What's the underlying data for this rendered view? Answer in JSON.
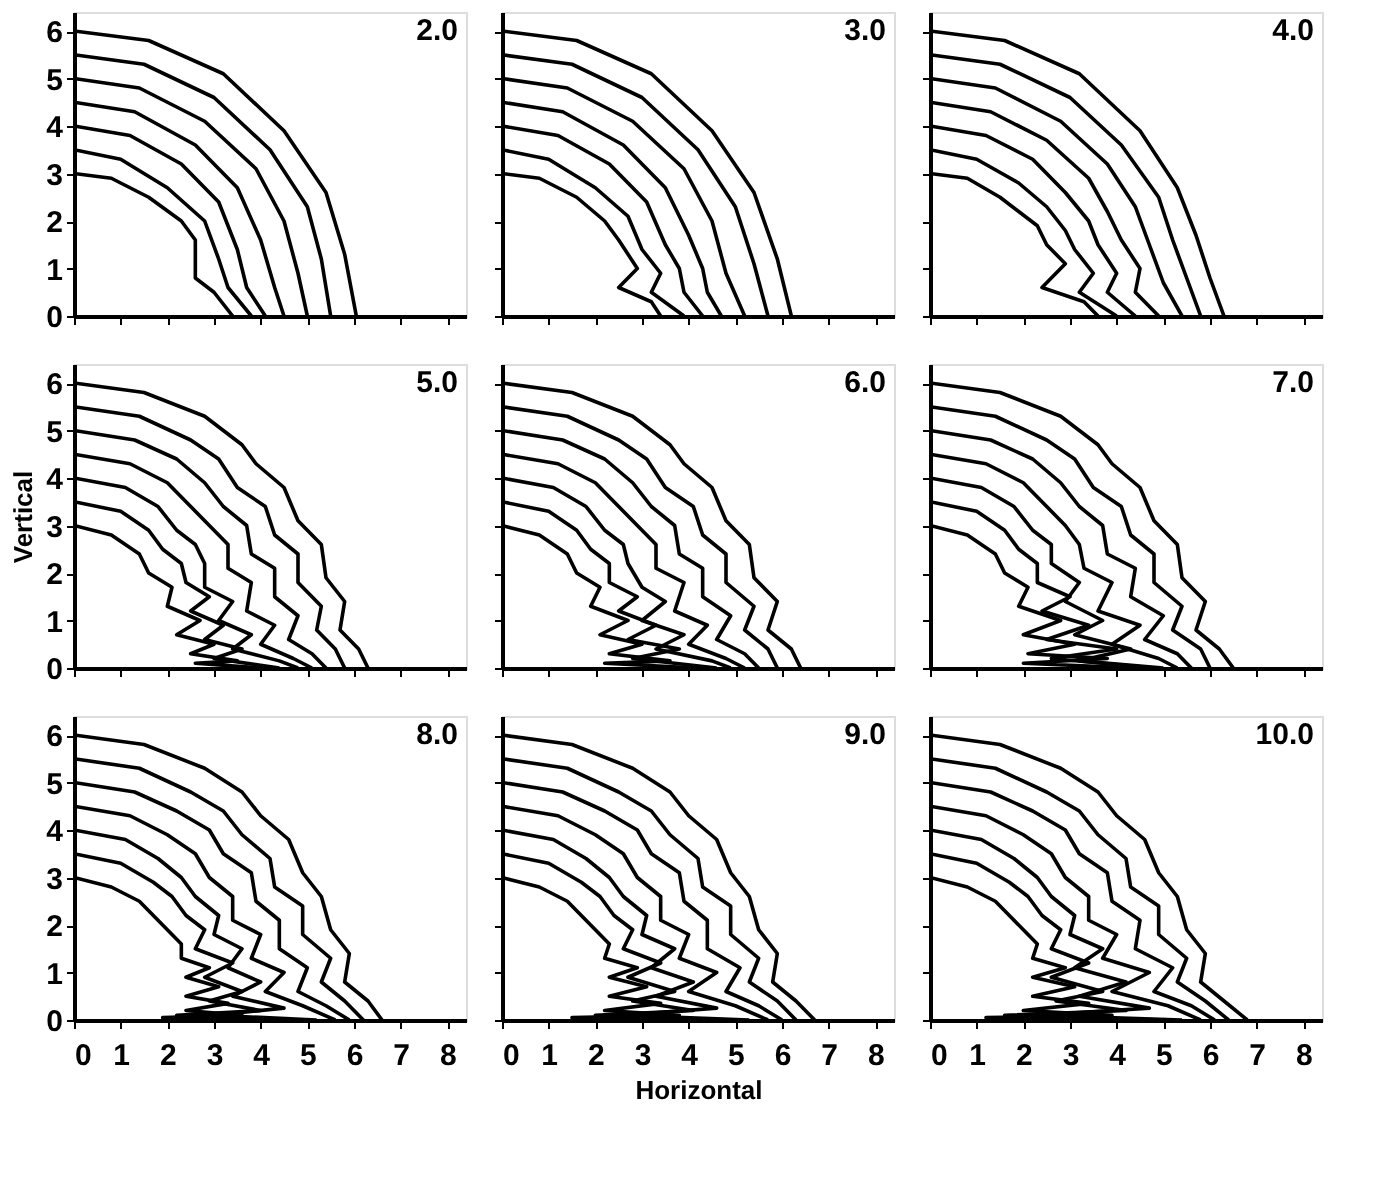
{
  "chart_data": [
    {
      "type": "line",
      "annotations": [
        "2.0"
      ],
      "xlim": [
        0,
        8.4
      ],
      "ylim": [
        0,
        6.4
      ],
      "xticks": [
        0,
        1,
        2,
        3,
        4,
        5,
        6,
        7,
        8
      ],
      "yticks": [
        0,
        1,
        2,
        3,
        4,
        5,
        6
      ],
      "tick_labels": "y",
      "series": [
        {
          "color": "#000000",
          "x": [
            0,
            0.8,
            1.6,
            2.3,
            2.6,
            2.6,
            3.0,
            3.4
          ],
          "values": [
            3,
            2.9,
            2.5,
            2.0,
            1.6,
            0.8,
            0.5,
            0
          ]
        },
        {
          "color": "#000000",
          "x": [
            0,
            1,
            2,
            2.8,
            3.1,
            3.3,
            3.8
          ],
          "values": [
            3.5,
            3.3,
            2.7,
            2.0,
            1.2,
            0.6,
            0
          ]
        },
        {
          "color": "#000000",
          "x": [
            0,
            1.2,
            2.3,
            3.1,
            3.5,
            3.7,
            4.1
          ],
          "values": [
            4,
            3.8,
            3.2,
            2.4,
            1.4,
            0.6,
            0
          ]
        },
        {
          "color": "#000000",
          "x": [
            0,
            1.3,
            2.6,
            3.5,
            4.0,
            4.3,
            4.5
          ],
          "values": [
            4.5,
            4.3,
            3.6,
            2.7,
            1.6,
            0.6,
            0
          ]
        },
        {
          "color": "#000000",
          "x": [
            0,
            1.4,
            2.8,
            3.9,
            4.5,
            4.8,
            5.0
          ],
          "values": [
            5,
            4.8,
            4.1,
            3.1,
            2.0,
            0.9,
            0
          ]
        },
        {
          "color": "#000000",
          "x": [
            0,
            1.5,
            3,
            4.2,
            5,
            5.3,
            5.5
          ],
          "values": [
            5.5,
            5.3,
            4.6,
            3.5,
            2.3,
            1.2,
            0
          ]
        },
        {
          "color": "#000000",
          "x": [
            0,
            1.6,
            3.2,
            4.5,
            5.4,
            5.8,
            6.05
          ],
          "values": [
            6,
            5.8,
            5.1,
            3.9,
            2.6,
            1.3,
            0
          ]
        }
      ]
    },
    {
      "type": "line",
      "annotations": [
        "3.0"
      ],
      "xlim": [
        0,
        8.4
      ],
      "ylim": [
        0,
        6.4
      ],
      "xticks": [
        0,
        1,
        2,
        3,
        4,
        5,
        6,
        7,
        8
      ],
      "yticks": [
        0,
        1,
        2,
        3,
        4,
        5,
        6
      ],
      "tick_labels": false,
      "series": [
        {
          "color": "#000000",
          "x": [
            0,
            0.8,
            1.6,
            2.2,
            2.5,
            2.9,
            2.5,
            3.2,
            3.4
          ],
          "values": [
            3,
            2.9,
            2.5,
            2.0,
            1.6,
            1.0,
            0.6,
            0.3,
            0
          ]
        },
        {
          "color": "#000000",
          "x": [
            0,
            1,
            2,
            2.7,
            3.0,
            3.4,
            3.2,
            3.9
          ],
          "values": [
            3.5,
            3.3,
            2.7,
            2.1,
            1.4,
            0.9,
            0.5,
            0
          ]
        },
        {
          "color": "#000000",
          "x": [
            0,
            1.2,
            2.3,
            3.1,
            3.5,
            3.8,
            3.9,
            4.3
          ],
          "values": [
            4,
            3.8,
            3.2,
            2.4,
            1.5,
            1.0,
            0.5,
            0
          ]
        },
        {
          "color": "#000000",
          "x": [
            0,
            1.3,
            2.6,
            3.5,
            4.0,
            4.3,
            4.4,
            4.7
          ],
          "values": [
            4.5,
            4.3,
            3.6,
            2.7,
            1.7,
            1.0,
            0.5,
            0
          ]
        },
        {
          "color": "#000000",
          "x": [
            0,
            1.4,
            2.8,
            3.9,
            4.5,
            4.8,
            5.2
          ],
          "values": [
            5,
            4.8,
            4.1,
            3.1,
            2.0,
            0.9,
            0
          ]
        },
        {
          "color": "#000000",
          "x": [
            0,
            1.5,
            3,
            4.2,
            5,
            5.4,
            5.7
          ],
          "values": [
            5.5,
            5.3,
            4.6,
            3.5,
            2.3,
            1.1,
            0
          ]
        },
        {
          "color": "#000000",
          "x": [
            0,
            1.6,
            3.2,
            4.5,
            5.4,
            5.9,
            6.2
          ],
          "values": [
            6,
            5.8,
            5.1,
            3.9,
            2.6,
            1.2,
            0
          ]
        }
      ]
    },
    {
      "type": "line",
      "annotations": [
        "4.0"
      ],
      "xlim": [
        0,
        8.4
      ],
      "ylim": [
        0,
        6.4
      ],
      "xticks": [
        0,
        1,
        2,
        3,
        4,
        5,
        6,
        7,
        8
      ],
      "yticks": [
        0,
        1,
        2,
        3,
        4,
        5,
        6
      ],
      "tick_labels": false,
      "series": [
        {
          "color": "#000000",
          "x": [
            0,
            0.8,
            1.5,
            1.9,
            2.3,
            2.5,
            2.9,
            2.4,
            3.3,
            3.6
          ],
          "values": [
            3,
            2.9,
            2.5,
            2.2,
            1.9,
            1.5,
            1.1,
            0.6,
            0.3,
            0
          ]
        },
        {
          "color": "#000000",
          "x": [
            0,
            1,
            1.9,
            2.5,
            2.9,
            3.1,
            3.5,
            3.2,
            4.0
          ],
          "values": [
            3.5,
            3.3,
            2.8,
            2.3,
            1.8,
            1.4,
            0.9,
            0.5,
            0
          ]
        },
        {
          "color": "#000000",
          "x": [
            0,
            1.2,
            2.2,
            2.9,
            3.4,
            3.6,
            4.0,
            3.8,
            4.4
          ],
          "values": [
            4,
            3.8,
            3.3,
            2.6,
            2.0,
            1.5,
            0.9,
            0.5,
            0
          ]
        },
        {
          "color": "#000000",
          "x": [
            0,
            1.3,
            2.5,
            3.4,
            3.8,
            4.1,
            4.5,
            4.4,
            4.9
          ],
          "values": [
            4.5,
            4.3,
            3.7,
            2.9,
            2.2,
            1.6,
            1.0,
            0.5,
            0
          ]
        },
        {
          "color": "#000000",
          "x": [
            0,
            1.4,
            2.8,
            3.8,
            4.4,
            4.7,
            5.0,
            5.4
          ],
          "values": [
            5,
            4.8,
            4.1,
            3.2,
            2.3,
            1.5,
            0.7,
            0
          ]
        },
        {
          "color": "#000000",
          "x": [
            0,
            1.5,
            3,
            4.1,
            4.9,
            5.2,
            5.5,
            5.8
          ],
          "values": [
            5.5,
            5.3,
            4.6,
            3.6,
            2.5,
            1.6,
            0.8,
            0
          ]
        },
        {
          "color": "#000000",
          "x": [
            0,
            1.6,
            3.2,
            4.5,
            5.3,
            5.7,
            6.0,
            6.3
          ],
          "values": [
            6,
            5.8,
            5.1,
            3.9,
            2.7,
            1.7,
            0.8,
            0
          ]
        }
      ]
    },
    {
      "type": "line",
      "annotations": [
        "5.0"
      ],
      "xlim": [
        0,
        8.4
      ],
      "ylim": [
        0,
        6.4
      ],
      "xticks": [
        0,
        1,
        2,
        3,
        4,
        5,
        6,
        7,
        8
      ],
      "yticks": [
        0,
        1,
        2,
        3,
        4,
        5,
        6
      ],
      "tick_labels": "y",
      "ylabel": "Vertical",
      "series": [
        {
          "color": "#000000",
          "x": [
            0,
            0.8,
            1.4,
            1.6,
            2.1,
            2.0,
            2.7,
            2.2,
            3.0,
            2.5,
            3.5,
            2.6,
            4.0
          ],
          "values": [
            3,
            2.8,
            2.4,
            2.0,
            1.7,
            1.3,
            1.0,
            0.7,
            0.5,
            0.3,
            0.15,
            0.1,
            0
          ]
        },
        {
          "color": "#000000",
          "x": [
            0,
            1.0,
            1.6,
            1.9,
            2.3,
            2.4,
            2.9,
            2.5,
            3.2,
            2.8,
            3.6,
            3.0,
            4.4
          ],
          "values": [
            3.5,
            3.3,
            2.9,
            2.5,
            2.2,
            1.8,
            1.5,
            1.2,
            0.9,
            0.6,
            0.4,
            0.2,
            0
          ]
        },
        {
          "color": "#000000",
          "x": [
            0,
            1.1,
            1.8,
            2.2,
            2.6,
            2.8,
            2.8,
            3.4,
            3.1,
            3.8,
            3.4,
            4.4,
            4.8
          ],
          "values": [
            4,
            3.8,
            3.4,
            2.9,
            2.6,
            2.2,
            1.7,
            1.4,
            1.0,
            0.7,
            0.4,
            0.15,
            0
          ]
        },
        {
          "color": "#000000",
          "x": [
            0,
            1.2,
            2,
            2.5,
            2.9,
            3.3,
            3.3,
            3.8,
            3.7,
            4.3,
            4.0,
            4.7,
            5.1
          ],
          "values": [
            4.5,
            4.3,
            3.9,
            3.4,
            3.0,
            2.6,
            2.1,
            1.8,
            1.2,
            0.9,
            0.5,
            0.2,
            0
          ]
        },
        {
          "color": "#000000",
          "x": [
            0,
            1.3,
            2.2,
            2.8,
            3.2,
            3.7,
            3.8,
            4.3,
            4.3,
            4.8,
            4.6,
            5.1,
            5.4
          ],
          "values": [
            5,
            4.8,
            4.4,
            3.9,
            3.4,
            3.0,
            2.4,
            2.1,
            1.5,
            1.1,
            0.6,
            0.3,
            0
          ]
        },
        {
          "color": "#000000",
          "x": [
            0,
            1.4,
            2.5,
            3.1,
            3.5,
            4.1,
            4.3,
            4.8,
            4.8,
            5.3,
            5.2,
            5.6,
            5.8
          ],
          "values": [
            5.5,
            5.3,
            4.8,
            4.4,
            3.8,
            3.4,
            2.8,
            2.4,
            1.8,
            1.3,
            0.8,
            0.4,
            0
          ]
        },
        {
          "color": "#000000",
          "x": [
            0,
            1.5,
            2.8,
            3.6,
            3.9,
            4.5,
            4.8,
            5.3,
            5.4,
            5.8,
            5.7,
            6.1,
            6.3
          ],
          "values": [
            6,
            5.8,
            5.3,
            4.7,
            4.3,
            3.8,
            3.1,
            2.6,
            1.9,
            1.4,
            0.8,
            0.4,
            0
          ]
        }
      ]
    },
    {
      "type": "line",
      "annotations": [
        "6.0"
      ],
      "xlim": [
        0,
        8.4
      ],
      "ylim": [
        0,
        6.4
      ],
      "xticks": [
        0,
        1,
        2,
        3,
        4,
        5,
        6,
        7,
        8
      ],
      "yticks": [
        0,
        1,
        2,
        3,
        4,
        5,
        6
      ],
      "tick_labels": false,
      "series": [
        {
          "color": "#000000",
          "x": [
            0,
            0.8,
            1.4,
            1.6,
            2.1,
            1.9,
            2.7,
            2.1,
            3.0,
            2.3,
            3.6,
            2.2,
            4.2
          ],
          "values": [
            3,
            2.8,
            2.4,
            2.0,
            1.7,
            1.3,
            1.0,
            0.7,
            0.5,
            0.3,
            0.15,
            0.1,
            0
          ]
        },
        {
          "color": "#000000",
          "x": [
            0,
            1.0,
            1.6,
            1.9,
            2.3,
            2.3,
            2.9,
            2.5,
            3.3,
            2.7,
            3.8,
            2.8,
            4.6
          ],
          "values": [
            3.5,
            3.3,
            2.9,
            2.5,
            2.2,
            1.8,
            1.5,
            1.2,
            0.9,
            0.6,
            0.4,
            0.2,
            0
          ]
        },
        {
          "color": "#000000",
          "x": [
            0,
            1.1,
            1.8,
            2.2,
            2.6,
            2.7,
            3.0,
            3.5,
            3.0,
            3.9,
            3.3,
            4.5,
            4.9
          ],
          "values": [
            4,
            3.8,
            3.4,
            2.9,
            2.6,
            2.2,
            1.7,
            1.4,
            1.0,
            0.7,
            0.4,
            0.15,
            0
          ]
        },
        {
          "color": "#000000",
          "x": [
            0,
            1.2,
            2,
            2.5,
            2.9,
            3.3,
            3.3,
            3.9,
            3.7,
            4.4,
            4.0,
            4.8,
            5.2
          ],
          "values": [
            4.5,
            4.3,
            3.9,
            3.4,
            3.0,
            2.6,
            2.1,
            1.8,
            1.2,
            0.9,
            0.5,
            0.2,
            0
          ]
        },
        {
          "color": "#000000",
          "x": [
            0,
            1.3,
            2.2,
            2.8,
            3.2,
            3.7,
            3.8,
            4.3,
            4.3,
            4.9,
            4.6,
            5.2,
            5.5
          ],
          "values": [
            5,
            4.8,
            4.4,
            3.9,
            3.4,
            3.0,
            2.4,
            2.1,
            1.5,
            1.1,
            0.6,
            0.3,
            0
          ]
        },
        {
          "color": "#000000",
          "x": [
            0,
            1.4,
            2.5,
            3.1,
            3.5,
            4.1,
            4.3,
            4.8,
            4.8,
            5.4,
            5.2,
            5.7,
            5.9
          ],
          "values": [
            5.5,
            5.3,
            4.8,
            4.4,
            3.8,
            3.4,
            2.8,
            2.4,
            1.8,
            1.3,
            0.8,
            0.4,
            0
          ]
        },
        {
          "color": "#000000",
          "x": [
            0,
            1.5,
            2.8,
            3.6,
            3.9,
            4.5,
            4.8,
            5.3,
            5.4,
            5.9,
            5.7,
            6.2,
            6.4
          ],
          "values": [
            6,
            5.8,
            5.3,
            4.7,
            4.3,
            3.8,
            3.1,
            2.6,
            1.9,
            1.4,
            0.8,
            0.4,
            0
          ]
        }
      ]
    },
    {
      "type": "line",
      "annotations": [
        "7.0"
      ],
      "xlim": [
        0,
        8.4
      ],
      "ylim": [
        0,
        6.4
      ],
      "xticks": [
        0,
        1,
        2,
        3,
        4,
        5,
        6,
        7,
        8
      ],
      "yticks": [
        0,
        1,
        2,
        3,
        4,
        5,
        6
      ],
      "tick_labels": false,
      "series": [
        {
          "color": "#000000",
          "x": [
            0,
            0.8,
            1.4,
            1.6,
            2.1,
            1.9,
            2.8,
            2.0,
            3.1,
            2.1,
            3.8,
            2.0,
            4.4
          ],
          "values": [
            3,
            2.8,
            2.4,
            2.0,
            1.7,
            1.3,
            1.0,
            0.7,
            0.5,
            0.3,
            0.2,
            0.1,
            0
          ]
        },
        {
          "color": "#000000",
          "x": [
            0,
            1.0,
            1.6,
            1.9,
            2.3,
            2.3,
            3.0,
            2.4,
            3.4,
            2.5,
            4.0,
            2.6,
            4.8
          ],
          "values": [
            3.5,
            3.3,
            2.9,
            2.5,
            2.2,
            1.8,
            1.5,
            1.2,
            0.9,
            0.6,
            0.4,
            0.2,
            0
          ]
        },
        {
          "color": "#000000",
          "x": [
            0,
            1.1,
            1.8,
            2.2,
            2.6,
            2.6,
            3.2,
            2.9,
            3.7,
            3.1,
            4.3,
            3.2,
            5.0
          ],
          "values": [
            4,
            3.8,
            3.4,
            2.9,
            2.6,
            2.2,
            1.8,
            1.4,
            1.0,
            0.7,
            0.4,
            0.15,
            0
          ]
        },
        {
          "color": "#000000",
          "x": [
            0,
            1.2,
            2,
            2.5,
            2.9,
            3.2,
            3.3,
            3.9,
            3.6,
            4.5,
            3.9,
            4.9,
            5.3
          ],
          "values": [
            4.5,
            4.3,
            3.9,
            3.4,
            3.0,
            2.6,
            2.1,
            1.8,
            1.2,
            0.9,
            0.5,
            0.2,
            0
          ]
        },
        {
          "color": "#000000",
          "x": [
            0,
            1.3,
            2.2,
            2.8,
            3.2,
            3.7,
            3.8,
            4.4,
            4.3,
            5.0,
            4.6,
            5.3,
            5.6
          ],
          "values": [
            5,
            4.8,
            4.4,
            3.9,
            3.4,
            3.0,
            2.4,
            2.1,
            1.5,
            1.1,
            0.6,
            0.3,
            0
          ]
        },
        {
          "color": "#000000",
          "x": [
            0,
            1.4,
            2.5,
            3.1,
            3.5,
            4.1,
            4.3,
            4.8,
            4.8,
            5.4,
            5.2,
            5.8,
            6.0
          ],
          "values": [
            5.5,
            5.3,
            4.8,
            4.4,
            3.8,
            3.4,
            2.8,
            2.4,
            1.8,
            1.3,
            0.8,
            0.4,
            0
          ]
        },
        {
          "color": "#000000",
          "x": [
            0,
            1.5,
            2.8,
            3.6,
            3.9,
            4.5,
            4.8,
            5.3,
            5.4,
            5.9,
            5.7,
            6.2,
            6.5
          ],
          "values": [
            6,
            5.8,
            5.3,
            4.7,
            4.3,
            3.8,
            3.1,
            2.6,
            1.9,
            1.4,
            0.8,
            0.4,
            0
          ]
        }
      ]
    },
    {
      "type": "line",
      "annotations": [
        "8.0"
      ],
      "xlim": [
        0,
        8.4
      ],
      "ylim": [
        0,
        6.4
      ],
      "xticks": [
        0,
        1,
        2,
        3,
        4,
        5,
        6,
        7,
        8
      ],
      "yticks": [
        0,
        1,
        2,
        3,
        4,
        5,
        6
      ],
      "series": [
        {
          "color": "#000000",
          "x": [
            0,
            0.8,
            1.4,
            1.7,
            2.0,
            2.3,
            2.3,
            2.9,
            2.4,
            3.1,
            2.4,
            3.3,
            2.4,
            3.6,
            1.9,
            4.4
          ],
          "values": [
            3,
            2.8,
            2.5,
            2.2,
            1.9,
            1.6,
            1.3,
            1.1,
            0.9,
            0.7,
            0.5,
            0.35,
            0.2,
            0.1,
            0.05,
            0
          ]
        },
        {
          "color": "#000000",
          "x": [
            0,
            1.0,
            1.7,
            2.1,
            2.4,
            2.8,
            2.6,
            3.4,
            2.8,
            3.6,
            2.9,
            4.0,
            2.2,
            4.8
          ],
          "values": [
            3.5,
            3.3,
            2.9,
            2.6,
            2.2,
            1.9,
            1.5,
            1.2,
            0.9,
            0.6,
            0.4,
            0.2,
            0.1,
            0
          ]
        },
        {
          "color": "#000000",
          "x": [
            0,
            1.1,
            1.8,
            2.3,
            2.6,
            3.1,
            3.0,
            3.6,
            3.3,
            4.0,
            3.4,
            4.5,
            3.0,
            5.2
          ],
          "values": [
            4,
            3.8,
            3.4,
            3.0,
            2.6,
            2.2,
            1.8,
            1.5,
            1.1,
            0.8,
            0.5,
            0.25,
            0.1,
            0
          ]
        },
        {
          "color": "#000000",
          "x": [
            0,
            1.2,
            2,
            2.6,
            2.9,
            3.4,
            3.4,
            4.0,
            3.8,
            4.5,
            4.1,
            4.9,
            5.6
          ],
          "values": [
            4.5,
            4.3,
            3.9,
            3.5,
            3.0,
            2.6,
            2.1,
            1.8,
            1.3,
            1.0,
            0.6,
            0.3,
            0
          ]
        },
        {
          "color": "#000000",
          "x": [
            0,
            1.3,
            2.2,
            2.9,
            3.2,
            3.8,
            3.9,
            4.4,
            4.4,
            5.0,
            4.8,
            5.4,
            5.9
          ],
          "values": [
            5,
            4.8,
            4.4,
            4.0,
            3.5,
            3.1,
            2.5,
            2.1,
            1.5,
            1.1,
            0.6,
            0.3,
            0
          ]
        },
        {
          "color": "#000000",
          "x": [
            0,
            1.4,
            2.5,
            3.2,
            3.6,
            4.2,
            4.3,
            4.9,
            4.9,
            5.5,
            5.3,
            5.8,
            6.2
          ],
          "values": [
            5.5,
            5.3,
            4.8,
            4.4,
            3.9,
            3.4,
            2.8,
            2.4,
            1.8,
            1.3,
            0.8,
            0.4,
            0
          ]
        },
        {
          "color": "#000000",
          "x": [
            0,
            1.5,
            2.8,
            3.6,
            4.0,
            4.6,
            4.9,
            5.3,
            5.5,
            5.9,
            5.8,
            6.3,
            6.6
          ],
          "values": [
            6,
            5.8,
            5.3,
            4.8,
            4.3,
            3.8,
            3.1,
            2.6,
            1.9,
            1.4,
            0.8,
            0.4,
            0
          ]
        }
      ]
    },
    {
      "type": "line",
      "annotations": [
        "9.0"
      ],
      "xlim": [
        0,
        8.4
      ],
      "ylim": [
        0,
        6.4
      ],
      "xticks": [
        0,
        1,
        2,
        3,
        4,
        5,
        6,
        7,
        8
      ],
      "yticks": [
        0,
        1,
        2,
        3,
        4,
        5,
        6
      ],
      "tick_labels": "x",
      "xlabel": "Horizontal",
      "series": [
        {
          "color": "#000000",
          "x": [
            0,
            0.8,
            1.4,
            1.7,
            2.0,
            2.3,
            2.2,
            2.9,
            2.3,
            3.1,
            2.3,
            3.4,
            2.2,
            3.8,
            1.5,
            4.5
          ],
          "values": [
            3,
            2.8,
            2.5,
            2.2,
            1.9,
            1.6,
            1.3,
            1.1,
            0.9,
            0.7,
            0.5,
            0.35,
            0.2,
            0.1,
            0.05,
            0
          ]
        },
        {
          "color": "#000000",
          "x": [
            0,
            1.0,
            1.7,
            2.1,
            2.4,
            2.8,
            2.6,
            3.4,
            2.7,
            3.7,
            2.8,
            4.1,
            2.0,
            4.9
          ],
          "values": [
            3.5,
            3.3,
            2.9,
            2.6,
            2.2,
            1.9,
            1.5,
            1.2,
            0.9,
            0.6,
            0.4,
            0.2,
            0.1,
            0
          ]
        },
        {
          "color": "#000000",
          "x": [
            0,
            1.1,
            1.8,
            2.3,
            2.6,
            3.1,
            3.0,
            3.7,
            3.2,
            4.1,
            3.3,
            4.6,
            2.6,
            5.3
          ],
          "values": [
            4,
            3.8,
            3.4,
            3.0,
            2.6,
            2.2,
            1.8,
            1.5,
            1.1,
            0.8,
            0.5,
            0.25,
            0.1,
            0
          ]
        },
        {
          "color": "#000000",
          "x": [
            0,
            1.2,
            2,
            2.6,
            2.9,
            3.4,
            3.4,
            4.0,
            3.8,
            4.6,
            4.0,
            5.0,
            5.7
          ],
          "values": [
            4.5,
            4.3,
            3.9,
            3.5,
            3.0,
            2.6,
            2.1,
            1.8,
            1.3,
            1.0,
            0.6,
            0.3,
            0
          ]
        },
        {
          "color": "#000000",
          "x": [
            0,
            1.3,
            2.2,
            2.9,
            3.2,
            3.8,
            3.9,
            4.4,
            4.4,
            5.1,
            4.8,
            5.5,
            6.0
          ],
          "values": [
            5,
            4.8,
            4.4,
            4.0,
            3.5,
            3.1,
            2.5,
            2.1,
            1.5,
            1.1,
            0.6,
            0.3,
            0
          ]
        },
        {
          "color": "#000000",
          "x": [
            0,
            1.4,
            2.5,
            3.2,
            3.6,
            4.2,
            4.3,
            4.9,
            4.9,
            5.5,
            5.3,
            5.9,
            6.3
          ],
          "values": [
            5.5,
            5.3,
            4.8,
            4.4,
            3.9,
            3.4,
            2.8,
            2.4,
            1.8,
            1.3,
            0.8,
            0.4,
            0
          ]
        },
        {
          "color": "#000000",
          "x": [
            0,
            1.5,
            2.8,
            3.6,
            4.0,
            4.6,
            4.9,
            5.3,
            5.5,
            5.9,
            5.8,
            6.3,
            6.7
          ],
          "values": [
            6,
            5.8,
            5.3,
            4.8,
            4.3,
            3.8,
            3.1,
            2.6,
            1.9,
            1.4,
            0.8,
            0.4,
            0
          ]
        }
      ]
    },
    {
      "type": "line",
      "annotations": [
        "10.0"
      ],
      "xlim": [
        0,
        8.4
      ],
      "ylim": [
        0,
        6.4
      ],
      "xticks": [
        0,
        1,
        2,
        3,
        4,
        5,
        6,
        7,
        8
      ],
      "yticks": [
        0,
        1,
        2,
        3,
        4,
        5,
        6
      ],
      "tick_labels": "x",
      "series": [
        {
          "color": "#000000",
          "x": [
            0,
            0.8,
            1.4,
            1.7,
            2.0,
            2.3,
            2.2,
            2.9,
            2.2,
            3.1,
            2.2,
            3.4,
            2.0,
            3.9,
            1.2,
            4.6
          ],
          "values": [
            3,
            2.8,
            2.5,
            2.2,
            1.9,
            1.6,
            1.3,
            1.1,
            0.9,
            0.7,
            0.5,
            0.35,
            0.2,
            0.1,
            0.05,
            0
          ]
        },
        {
          "color": "#000000",
          "x": [
            0,
            1.0,
            1.7,
            2.1,
            2.4,
            2.8,
            2.6,
            3.4,
            2.6,
            3.7,
            2.7,
            4.2,
            1.6,
            5.0
          ],
          "values": [
            3.5,
            3.3,
            2.9,
            2.6,
            2.2,
            1.9,
            1.5,
            1.2,
            0.9,
            0.6,
            0.4,
            0.2,
            0.1,
            0
          ]
        },
        {
          "color": "#000000",
          "x": [
            0,
            1.1,
            1.8,
            2.3,
            2.6,
            3.1,
            3.0,
            3.7,
            3.1,
            4.2,
            3.2,
            4.7,
            2.3,
            5.4
          ],
          "values": [
            4,
            3.8,
            3.4,
            3.0,
            2.6,
            2.2,
            1.8,
            1.5,
            1.1,
            0.8,
            0.5,
            0.25,
            0.1,
            0
          ]
        },
        {
          "color": "#000000",
          "x": [
            0,
            1.2,
            2,
            2.6,
            2.9,
            3.4,
            3.4,
            4.0,
            3.7,
            4.7,
            3.9,
            5.1,
            5.8
          ],
          "values": [
            4.5,
            4.3,
            3.9,
            3.5,
            3.0,
            2.6,
            2.1,
            1.8,
            1.3,
            1.0,
            0.6,
            0.3,
            0
          ]
        },
        {
          "color": "#000000",
          "x": [
            0,
            1.3,
            2.2,
            2.9,
            3.2,
            3.8,
            3.9,
            4.5,
            4.4,
            5.2,
            4.8,
            5.6,
            6.1
          ],
          "values": [
            5,
            4.8,
            4.4,
            4.0,
            3.5,
            3.1,
            2.5,
            2.1,
            1.5,
            1.1,
            0.6,
            0.3,
            0
          ]
        },
        {
          "color": "#000000",
          "x": [
            0,
            1.4,
            2.5,
            3.2,
            3.6,
            4.2,
            4.3,
            4.9,
            4.9,
            5.5,
            5.3,
            5.9,
            6.4
          ],
          "values": [
            5.5,
            5.3,
            4.8,
            4.4,
            3.9,
            3.4,
            2.8,
            2.4,
            1.8,
            1.3,
            0.8,
            0.4,
            0
          ]
        },
        {
          "color": "#000000",
          "x": [
            0,
            1.5,
            2.8,
            3.6,
            4.0,
            4.6,
            4.9,
            5.3,
            5.5,
            5.9,
            5.8,
            6.3,
            6.8
          ],
          "values": [
            6,
            5.8,
            5.3,
            4.8,
            4.3,
            3.8,
            3.1,
            2.6,
            1.9,
            1.4,
            0.8,
            0.4,
            0
          ]
        }
      ]
    }
  ]
}
